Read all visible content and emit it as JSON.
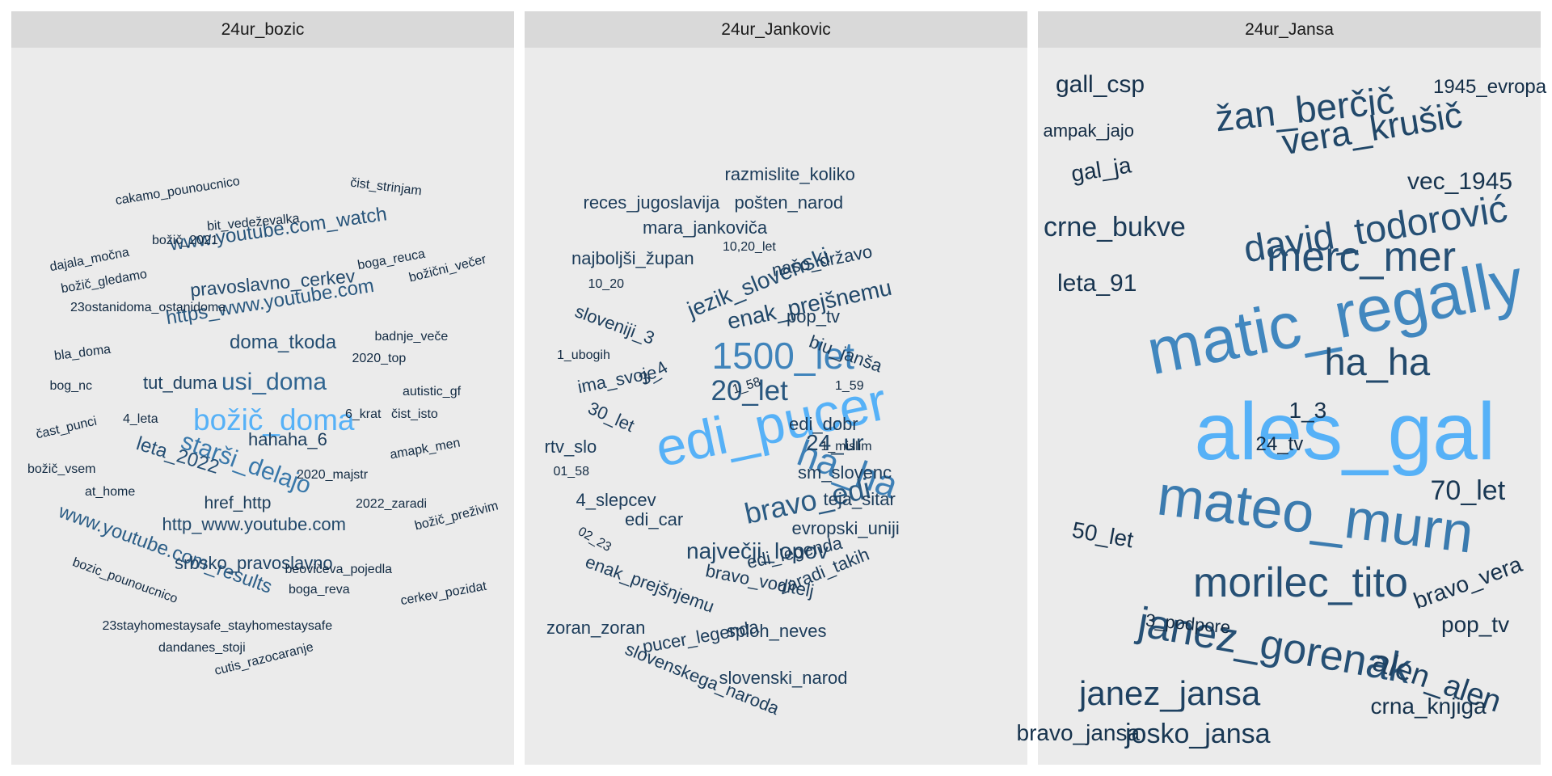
{
  "chart_data": [
    {
      "type": "wordcloud",
      "facet": "24ur_bozic",
      "colors": {
        "max": "#56b1f7",
        "min": "#132b43"
      },
      "words": [
        {
          "text": "božič_doma",
          "weight": 1.0
        },
        {
          "text": "starši_delajo",
          "weight": 0.72
        },
        {
          "text": "usi_doma",
          "weight": 0.62
        },
        {
          "text": "www.youtube.com_results",
          "weight": 0.58
        },
        {
          "text": "https_www.youtube.com",
          "weight": 0.55
        },
        {
          "text": "www.youtube.com_watch",
          "weight": 0.52
        },
        {
          "text": "leta_2022",
          "weight": 0.5
        },
        {
          "text": "doma_tkoda",
          "weight": 0.48
        },
        {
          "text": "pravoslavno_cerkev",
          "weight": 0.46
        },
        {
          "text": "http_www.youtube.com",
          "weight": 0.45
        },
        {
          "text": "srbsko_pravoslavno",
          "weight": 0.42
        },
        {
          "text": "tut_duma",
          "weight": 0.4
        },
        {
          "text": "hahaha_6",
          "weight": 0.38
        },
        {
          "text": "href_http",
          "weight": 0.36
        },
        {
          "text": "cakamo_pounoucnico",
          "weight": 0.2
        },
        {
          "text": "čist_strinjam",
          "weight": 0.2
        },
        {
          "text": "bit_vedeževalka",
          "weight": 0.2
        },
        {
          "text": "božič_2021",
          "weight": 0.2
        },
        {
          "text": "dajala_močna",
          "weight": 0.2
        },
        {
          "text": "božič_gledamo",
          "weight": 0.2
        },
        {
          "text": "boga_reuca",
          "weight": 0.2
        },
        {
          "text": "božični_večer",
          "weight": 0.2
        },
        {
          "text": "23ostanidoma_ostanidoma",
          "weight": 0.2
        },
        {
          "text": "badnje_veče",
          "weight": 0.2
        },
        {
          "text": "bla_doma",
          "weight": 0.2
        },
        {
          "text": "2020_top",
          "weight": 0.2
        },
        {
          "text": "bog_nc",
          "weight": 0.2
        },
        {
          "text": "autistic_gf",
          "weight": 0.2
        },
        {
          "text": "4_leta",
          "weight": 0.2
        },
        {
          "text": "6_krat",
          "weight": 0.2
        },
        {
          "text": "čist_isto",
          "weight": 0.2
        },
        {
          "text": "čast_punci",
          "weight": 0.2
        },
        {
          "text": "amapk_men",
          "weight": 0.2
        },
        {
          "text": "božič_vsem",
          "weight": 0.2
        },
        {
          "text": "2020_majstr",
          "weight": 0.2
        },
        {
          "text": "at_home",
          "weight": 0.2
        },
        {
          "text": "2022_zaradi",
          "weight": 0.2
        },
        {
          "text": "božič_preživim",
          "weight": 0.2
        },
        {
          "text": "beovičeva_pojedla",
          "weight": 0.2
        },
        {
          "text": "bozic_pounoucnico",
          "weight": 0.2
        },
        {
          "text": "boga_reva",
          "weight": 0.2
        },
        {
          "text": "cerkev_pozidat",
          "weight": 0.2
        },
        {
          "text": "23stayhomestaysafe_stayhomestaysafe",
          "weight": 0.2
        },
        {
          "text": "dandanes_stoji",
          "weight": 0.2
        },
        {
          "text": "cutis_razocaranje",
          "weight": 0.2
        }
      ]
    },
    {
      "type": "wordcloud",
      "facet": "24ur_Jankovic",
      "colors": {
        "max": "#56b1f7",
        "min": "#132b43"
      },
      "words": [
        {
          "text": "edi_pucer",
          "weight": 1.0
        },
        {
          "text": "1500_let",
          "weight": 0.78
        },
        {
          "text": "ha_ha",
          "weight": 0.76
        },
        {
          "text": "bravo_edi",
          "weight": 0.55
        },
        {
          "text": "20_let",
          "weight": 0.53
        },
        {
          "text": "jezik_slovenski",
          "weight": 0.45
        },
        {
          "text": "enak_prejšnemu",
          "weight": 0.43
        },
        {
          "text": "največji_lopov",
          "weight": 0.42
        },
        {
          "text": "24_ur",
          "weight": 0.4
        },
        {
          "text": "razmislite_koliko",
          "weight": 0.35
        },
        {
          "text": "reces_jugoslavija",
          "weight": 0.35
        },
        {
          "text": "pošten_narod",
          "weight": 0.35
        },
        {
          "text": "mara_jankoviča",
          "weight": 0.35
        },
        {
          "text": "najboljši_župan",
          "weight": 0.35
        },
        {
          "text": "10,20_let",
          "weight": 0.18
        },
        {
          "text": "našo_državo",
          "weight": 0.35
        },
        {
          "text": "10_20",
          "weight": 0.18
        },
        {
          "text": "sloveniji_3",
          "weight": 0.35
        },
        {
          "text": "pop_tv",
          "weight": 0.35
        },
        {
          "text": "1_ubogih",
          "weight": 0.18
        },
        {
          "text": "biu_janša",
          "weight": 0.35
        },
        {
          "text": "3_4",
          "weight": 0.35
        },
        {
          "text": "ima_svoje",
          "weight": 0.35
        },
        {
          "text": "1_58",
          "weight": 0.18
        },
        {
          "text": "1_59",
          "weight": 0.18
        },
        {
          "text": "30_let",
          "weight": 0.35
        },
        {
          "text": "edi_dobr",
          "weight": 0.35
        },
        {
          "text": "rtv_slo",
          "weight": 0.35
        },
        {
          "text": "1_mislim",
          "weight": 0.18
        },
        {
          "text": "01_58",
          "weight": 0.18
        },
        {
          "text": "sm_slovenc",
          "weight": 0.35
        },
        {
          "text": "4_slepcev",
          "weight": 0.35
        },
        {
          "text": "teja_sitar",
          "weight": 0.35
        },
        {
          "text": "edi_car",
          "weight": 0.35
        },
        {
          "text": "evropski_uniji",
          "weight": 0.35
        },
        {
          "text": "02_23",
          "weight": 0.18
        },
        {
          "text": "edi_legenda",
          "weight": 0.35
        },
        {
          "text": "enak_prejšnjemu",
          "weight": 0.35
        },
        {
          "text": "bravo_voditelj",
          "weight": 0.35
        },
        {
          "text": "zaradi_takih",
          "weight": 0.35
        },
        {
          "text": "zoran_zoran",
          "weight": 0.35
        },
        {
          "text": "pucer_legenda",
          "weight": 0.35
        },
        {
          "text": "sploh_neves",
          "weight": 0.35
        },
        {
          "text": "slovenskega_naroda",
          "weight": 0.35
        },
        {
          "text": "slovenski_narod",
          "weight": 0.35
        }
      ]
    },
    {
      "type": "wordcloud",
      "facet": "24ur_Jansa",
      "colors": {
        "max": "#56b1f7",
        "min": "#132b43"
      },
      "words": [
        {
          "text": "ales_gal",
          "weight": 1.0
        },
        {
          "text": "matic_regally",
          "weight": 0.8
        },
        {
          "text": "mateo_murn",
          "weight": 0.74
        },
        {
          "text": "david_todorović",
          "weight": 0.5
        },
        {
          "text": "merc_mer",
          "weight": 0.5
        },
        {
          "text": "morilec_tito",
          "weight": 0.5
        },
        {
          "text": "janez_gorenak",
          "weight": 0.5
        },
        {
          "text": "ha_ha",
          "weight": 0.45
        },
        {
          "text": "žan_berčič",
          "weight": 0.45
        },
        {
          "text": "vera_krušič",
          "weight": 0.43
        },
        {
          "text": "janez_jansa",
          "weight": 0.4
        },
        {
          "text": "alen_alen",
          "weight": 0.4
        },
        {
          "text": "crne_bukve",
          "weight": 0.35
        },
        {
          "text": "josko_jansa",
          "weight": 0.33
        },
        {
          "text": "70_let",
          "weight": 0.33
        },
        {
          "text": "leta_91",
          "weight": 0.3
        },
        {
          "text": "vec_1945",
          "weight": 0.3
        },
        {
          "text": "gall_csp",
          "weight": 0.27
        },
        {
          "text": "crna_knjiga",
          "weight": 0.28
        },
        {
          "text": "bravo_jansa",
          "weight": 0.28
        },
        {
          "text": "50_let",
          "weight": 0.27
        },
        {
          "text": "bravo_vera",
          "weight": 0.27
        },
        {
          "text": "pop_tv",
          "weight": 0.27
        },
        {
          "text": "1_3",
          "weight": 0.27
        },
        {
          "text": "gal_ja",
          "weight": 0.25
        },
        {
          "text": "1945_evropa",
          "weight": 0.24
        },
        {
          "text": "ampak_jajo",
          "weight": 0.22
        },
        {
          "text": "24_tv",
          "weight": 0.22
        },
        {
          "text": "3_podpore",
          "weight": 0.2
        }
      ]
    }
  ]
}
